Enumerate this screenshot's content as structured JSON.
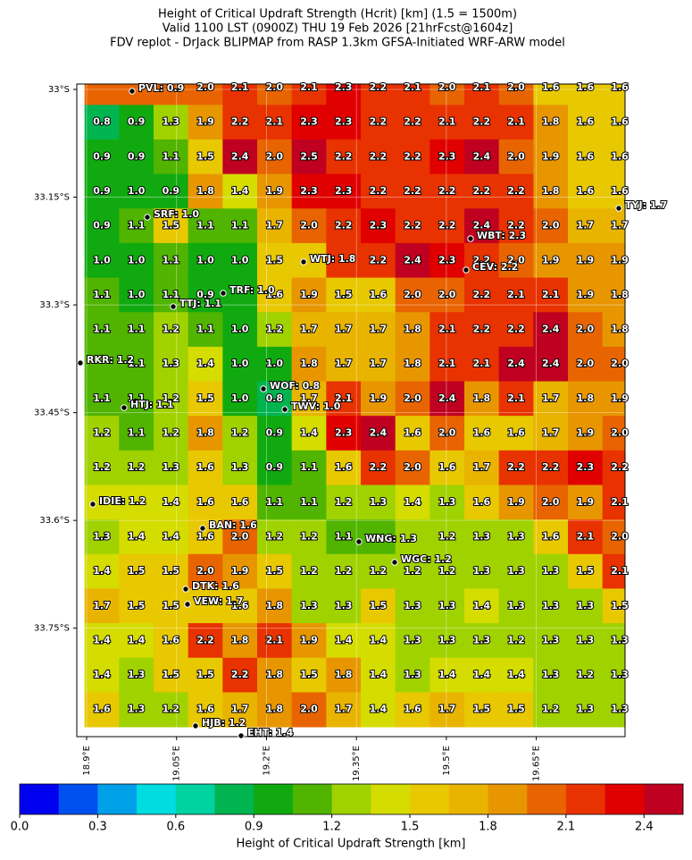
{
  "title": [
    "Height of Critical Updraft Strength (Hcrit) [km] (1.5 = 1500m)",
    "Valid 1100 LST (0900Z) THU 19 Feb 2026 [21hrFcst@1604z]",
    "FDV replot - DrJack BLIPMAP from RASP 1.3km GFSA-Initiated WRF-ARW model"
  ],
  "map": {
    "xlim": [
      18.8836,
      19.798
    ],
    "ylim": [
      -33.901,
      -32.9925
    ],
    "xticks": [
      {
        "value": 18.9,
        "label": "18.9°E"
      },
      {
        "value": 19.05,
        "label": "19.05°E"
      },
      {
        "value": 19.2,
        "label": "19.2°E"
      },
      {
        "value": 19.35,
        "label": "19.35°E"
      },
      {
        "value": 19.5,
        "label": "19.5°E"
      },
      {
        "value": 19.65,
        "label": "19.65°E"
      }
    ],
    "yticks": [
      {
        "value": -33,
        "label": "33°S"
      },
      {
        "value": -33.15,
        "label": "33.15°S"
      },
      {
        "value": -33.3,
        "label": "33.3°S"
      },
      {
        "value": -33.45,
        "label": "33.45°S"
      },
      {
        "value": -33.6,
        "label": "33.6°S"
      },
      {
        "value": -33.75,
        "label": "33.75°S"
      }
    ],
    "grid_values": [
      [
        null,
        null,
        null,
        "2.0",
        "2.1",
        "2.0",
        "2.1",
        "2.3",
        "2.2",
        "2.1",
        "2.0",
        "2.1",
        "2.0",
        "1.6",
        "1.6",
        "1.6"
      ],
      [
        "0.8",
        "0.9",
        "1.3",
        "1.9",
        "2.2",
        "2.1",
        "2.3",
        "2.3",
        "2.2",
        "2.2",
        "2.1",
        "2.2",
        "2.1",
        "1.8",
        "1.6",
        "1.6"
      ],
      [
        "0.9",
        "0.9",
        "1.1",
        "1.5",
        "2.4",
        "2.0",
        "2.5",
        "2.2",
        "2.2",
        "2.2",
        "2.3",
        "2.4",
        "2.0",
        "1.9",
        "1.6",
        "1.6"
      ],
      [
        "0.9",
        "1.0",
        "0.9",
        "1.8",
        "1.4",
        "1.9",
        "2.3",
        "2.3",
        "2.2",
        "2.2",
        "2.2",
        "2.2",
        "2.2",
        "1.8",
        "1.6",
        "1.6"
      ],
      [
        "0.9",
        "1.1",
        "1.5",
        "1.1",
        "1.1",
        "1.7",
        "2.0",
        "2.2",
        "2.3",
        "2.2",
        "2.2",
        "2.4",
        "2.2",
        "2.0",
        "1.7",
        "1.7"
      ],
      [
        "1.0",
        "1.0",
        "1.1",
        "1.0",
        "1.0",
        "1.5",
        null,
        null,
        "2.2",
        "2.4",
        "2.3",
        "2.2",
        "2.0",
        "1.9",
        "1.9",
        "1.9"
      ],
      [
        "1.1",
        "1.0",
        "1.1",
        "0.9",
        null,
        "1.6",
        "1.9",
        "1.5",
        "1.6",
        "2.0",
        "2.0",
        "2.2",
        "2.1",
        "2.1",
        "1.9",
        "1.8"
      ],
      [
        "1.1",
        "1.1",
        "1.2",
        "1.1",
        "1.0",
        "1.2",
        "1.7",
        "1.7",
        "1.7",
        "1.8",
        "2.1",
        "2.2",
        "2.2",
        "2.4",
        "2.0",
        "1.8"
      ],
      [
        null,
        "1.1",
        "1.3",
        "1.4",
        "1.0",
        "1.0",
        "1.8",
        "1.7",
        "1.7",
        "1.8",
        "2.1",
        "2.1",
        "2.4",
        "2.4",
        "2.0",
        "2.0"
      ],
      [
        "1.1",
        "1.1",
        "1.2",
        "1.5",
        "1.0",
        "0.8",
        "1.7",
        "2.1",
        "1.9",
        "2.0",
        "2.4",
        "1.8",
        "2.1",
        "1.7",
        "1.8",
        "1.9"
      ],
      [
        "1.2",
        "1.1",
        "1.2",
        "1.8",
        "1.2",
        "0.9",
        "1.4",
        "2.3",
        "2.4",
        "1.6",
        "2.0",
        "1.6",
        "1.6",
        "1.7",
        "1.9",
        "2.0"
      ],
      [
        "1.2",
        "1.2",
        "1.3",
        "1.6",
        "1.3",
        "0.9",
        "1.1",
        "1.6",
        "2.2",
        "2.0",
        "1.6",
        "1.7",
        "2.2",
        "2.2",
        "2.3",
        "2.2"
      ],
      [
        null,
        null,
        "1.4",
        "1.6",
        "1.6",
        "1.1",
        "1.1",
        "1.2",
        "1.3",
        "1.4",
        "1.3",
        "1.6",
        "1.9",
        "2.0",
        "1.9",
        "2.1"
      ],
      [
        "1.3",
        "1.4",
        "1.4",
        "1.6",
        "2.0",
        "1.2",
        "1.2",
        "1.1",
        null,
        null,
        "1.2",
        "1.3",
        "1.3",
        "1.6",
        "2.1",
        "2.0"
      ],
      [
        "1.4",
        "1.5",
        "1.5",
        "2.0",
        "1.9",
        "1.5",
        "1.2",
        "1.2",
        "1.2",
        "1.2",
        "1.2",
        "1.3",
        "1.3",
        "1.3",
        "1.5",
        "2.1"
      ],
      [
        "1.7",
        "1.5",
        "1.5",
        null,
        "1.6",
        "1.8",
        "1.3",
        "1.3",
        "1.5",
        "1.3",
        "1.3",
        "1.4",
        "1.3",
        "1.3",
        "1.3",
        "1.5"
      ],
      [
        "1.4",
        "1.4",
        "1.6",
        "2.2",
        "1.8",
        "2.1",
        "1.9",
        "1.4",
        "1.4",
        "1.3",
        "1.3",
        "1.3",
        "1.2",
        "1.3",
        "1.3",
        "1.3"
      ],
      [
        "1.4",
        "1.3",
        "1.5",
        "1.5",
        "2.2",
        "1.8",
        "1.5",
        "1.8",
        "1.4",
        "1.3",
        "1.4",
        "1.4",
        "1.4",
        "1.3",
        "1.2",
        "1.3"
      ],
      [
        "1.6",
        "1.3",
        "1.2",
        "1.6",
        "1.7",
        "1.8",
        "2.0",
        "1.7",
        "1.4",
        "1.6",
        "1.7",
        "1.5",
        "1.5",
        "1.2",
        "1.3",
        "1.3"
      ]
    ],
    "stations": [
      "PVL: 0.9",
      "TYJ: 1.7",
      "SRF: 1.0",
      "WBT: 2.3",
      "WTJ: 1.8",
      "CEV: 2.2",
      "TRF: 1.0",
      "TTJ: 1.1",
      "RKR: 1.2",
      "WOF: 0.8",
      "HTJ: 1.1",
      "TWV: 1.0",
      "IDIE: 1.2",
      "BAN: 1.6",
      "WNG: 1.3",
      "WGC: 1.2",
      "DTK: 1.6",
      "VEW: 1.7",
      "HJB: 1.2",
      "EHT: 1.4"
    ]
  },
  "colorbar": {
    "label": "Height of Critical Updraft Strength [km]",
    "lim": [
      0,
      2.55
    ],
    "step": 0.15,
    "colors": [
      "#0000f0",
      "#0050f0",
      "#00a0e8",
      "#00dce0",
      "#00d2a0",
      "#00b450",
      "#10aa10",
      "#50b400",
      "#a0d200",
      "#d4dc00",
      "#e8c800",
      "#e8b400",
      "#e89600",
      "#e86400",
      "#e83200",
      "#e00000",
      "#c00020"
    ],
    "ticks": [
      {
        "value": 0,
        "label": "0.0"
      },
      {
        "value": 0.3,
        "label": "0.3"
      },
      {
        "value": 0.6,
        "label": "0.6"
      },
      {
        "value": 0.9,
        "label": "0.9"
      },
      {
        "value": 1.2,
        "label": "1.2"
      },
      {
        "value": 1.5,
        "label": "1.5"
      },
      {
        "value": 1.8,
        "label": "1.8"
      },
      {
        "value": 2.1,
        "label": "2.1"
      },
      {
        "value": 2.4,
        "label": "2.4"
      }
    ]
  }
}
